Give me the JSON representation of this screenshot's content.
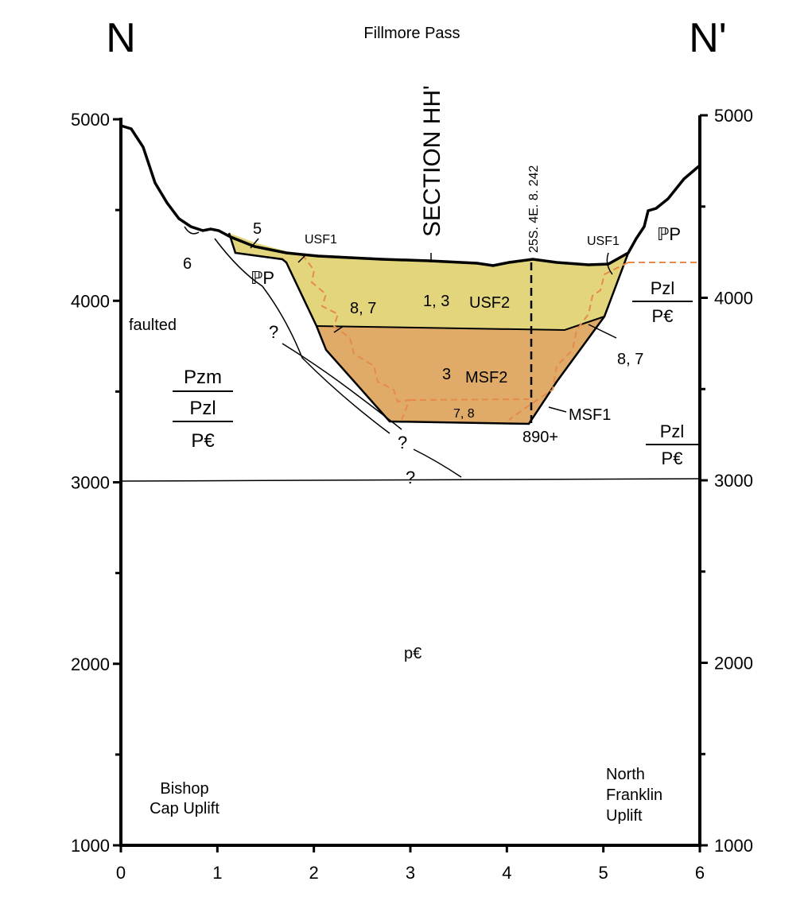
{
  "header": {
    "left_label": "N",
    "right_label": "N'",
    "title": "Fillmore Pass"
  },
  "axes": {
    "x_ticks": [
      0,
      1,
      2,
      3,
      4,
      5,
      6
    ],
    "left_ticks": [
      1000,
      2000,
      3000,
      4000,
      5000
    ],
    "right_ticks": [
      1000,
      2000,
      3000,
      4000,
      5000
    ]
  },
  "section_label": "SECTION HH'",
  "well_label": "25S. 4E. 8. 242",
  "units": {
    "usf1_left": "USF1",
    "usf1_right": "USF1",
    "usf2": "USF2",
    "msf2": "MSF2",
    "msf1": "MSF1",
    "pp_left": "ℙP",
    "pp_right": "ℙP",
    "pc": "p€",
    "well_depth": "890+"
  },
  "numbers": {
    "n5": "5",
    "n6": "6",
    "n13": "1, 3",
    "n87_left": "8, 7",
    "n87_right": "8, 7",
    "n3": "3",
    "n78": "7, 8"
  },
  "annotations": {
    "faulted": "faulted",
    "q1": "?",
    "q2": "?",
    "q3": "?",
    "left_formations": [
      "Pzm",
      "Pzl",
      "P€"
    ],
    "right_upper": [
      "Pzl",
      "P€"
    ],
    "right_lower": [
      "Pzl",
      "P€"
    ],
    "bishop": [
      "Bishop",
      "Cap Uplift"
    ],
    "franklin": [
      "North",
      "Franklin",
      "Uplift"
    ]
  }
}
